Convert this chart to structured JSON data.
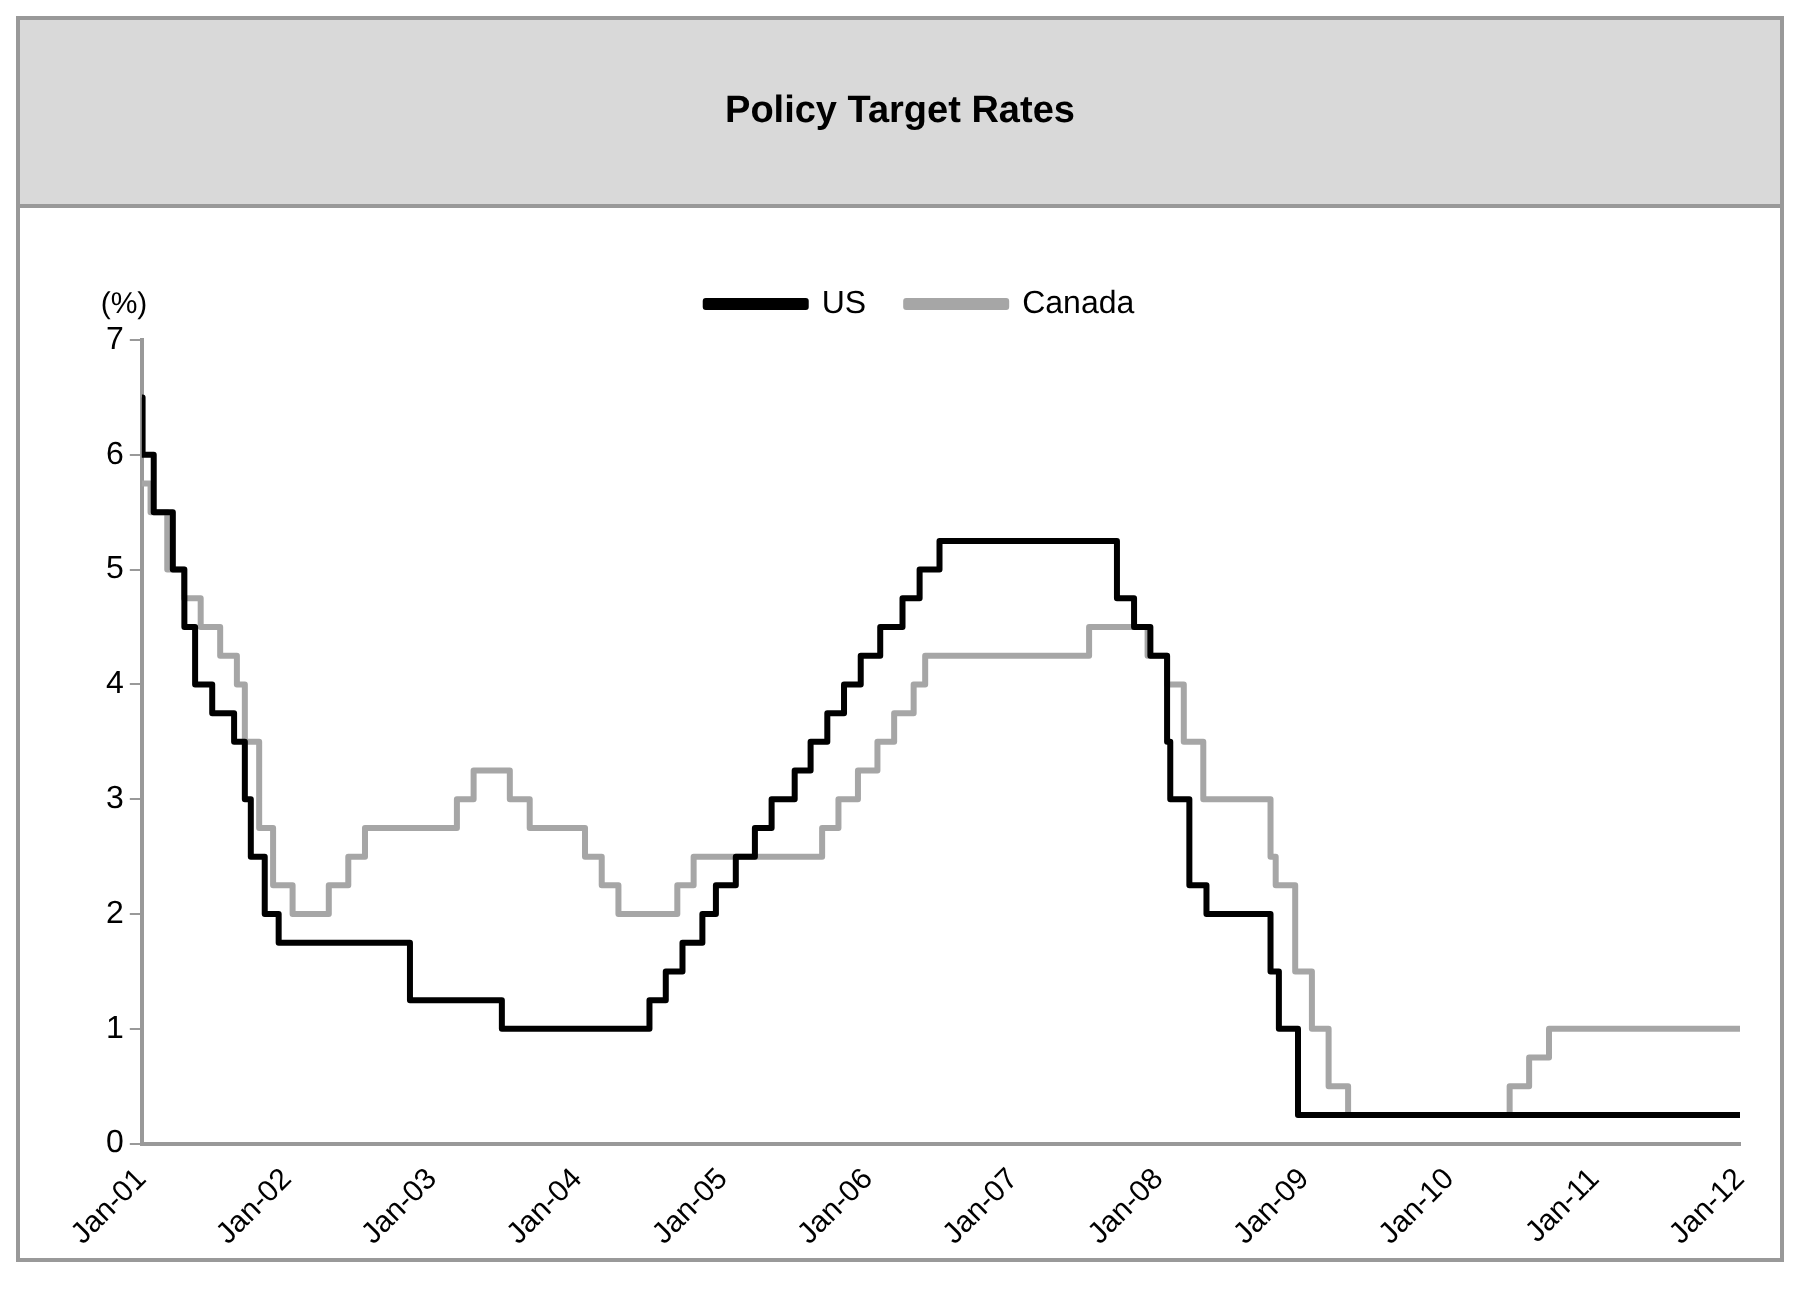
{
  "chart_data": {
    "type": "step",
    "title": "Policy Target Rates",
    "ylabel": "(%)",
    "legend": "top",
    "grid": false,
    "marker": "none",
    "line_style": "solid",
    "xlim": [
      "2001-01",
      "2012-01"
    ],
    "ylim": [
      0,
      7
    ],
    "yticks": [
      0,
      1,
      2,
      3,
      4,
      5,
      6,
      7
    ],
    "xticks": [
      {
        "value": "2001-01",
        "label": "Jan-01"
      },
      {
        "value": "2002-01",
        "label": "Jan-02"
      },
      {
        "value": "2003-01",
        "label": "Jan-03"
      },
      {
        "value": "2004-01",
        "label": "Jan-04"
      },
      {
        "value": "2005-01",
        "label": "Jan-05"
      },
      {
        "value": "2006-01",
        "label": "Jan-06"
      },
      {
        "value": "2007-01",
        "label": "Jan-07"
      },
      {
        "value": "2008-01",
        "label": "Jan-08"
      },
      {
        "value": "2009-01",
        "label": "Jan-09"
      },
      {
        "value": "2010-01",
        "label": "Jan-10"
      },
      {
        "value": "2011-01",
        "label": "Jan-11"
      },
      {
        "value": "2012-01",
        "label": "Jan-12"
      }
    ],
    "series": [
      {
        "name": "US",
        "color": "#000000",
        "x": [
          "2001-01-01",
          "2001-01-03",
          "2001-01-31",
          "2001-03-20",
          "2001-04-18",
          "2001-05-15",
          "2001-06-27",
          "2001-08-21",
          "2001-09-17",
          "2001-10-02",
          "2001-11-06",
          "2001-12-11",
          "2002-11-06",
          "2003-06-25",
          "2004-06-30",
          "2004-08-10",
          "2004-09-21",
          "2004-11-10",
          "2004-12-14",
          "2005-02-02",
          "2005-03-22",
          "2005-05-03",
          "2005-06-30",
          "2005-08-09",
          "2005-09-20",
          "2005-11-01",
          "2005-12-13",
          "2006-01-31",
          "2006-03-28",
          "2006-05-10",
          "2006-06-29",
          "2007-09-18",
          "2007-10-31",
          "2007-12-11",
          "2008-01-22",
          "2008-01-30",
          "2008-03-18",
          "2008-04-30",
          "2008-10-08",
          "2008-10-29",
          "2008-12-16",
          "2012-01-01"
        ],
        "values": [
          6.5,
          6,
          5.5,
          5,
          4.5,
          4,
          3.75,
          3.5,
          3,
          2.5,
          2,
          1.75,
          1.25,
          1,
          1.25,
          1.5,
          1.75,
          2,
          2.25,
          2.5,
          2.75,
          3,
          3.25,
          3.5,
          3.75,
          4,
          4.25,
          4.5,
          4.75,
          5,
          5.25,
          4.75,
          4.5,
          4.25,
          3.5,
          3,
          2.25,
          2,
          1.5,
          1,
          0.25,
          0.25
        ]
      },
      {
        "name": "Canada",
        "color": "#a6a6a6",
        "x": [
          "2001-01-01",
          "2001-01-23",
          "2001-03-06",
          "2001-04-17",
          "2001-05-29",
          "2001-07-17",
          "2001-08-28",
          "2001-09-17",
          "2001-10-23",
          "2001-11-27",
          "2002-01-15",
          "2002-04-16",
          "2002-06-04",
          "2002-07-16",
          "2003-03-04",
          "2003-04-15",
          "2003-07-15",
          "2003-09-03",
          "2004-01-20",
          "2004-03-02",
          "2004-04-13",
          "2004-09-08",
          "2004-10-19",
          "2005-09-07",
          "2005-10-18",
          "2005-12-06",
          "2006-01-24",
          "2006-03-07",
          "2006-04-25",
          "2006-05-24",
          "2007-07-10",
          "2007-12-04",
          "2008-01-22",
          "2008-03-04",
          "2008-04-22",
          "2008-10-08",
          "2008-10-21",
          "2008-12-09",
          "2009-01-20",
          "2009-03-03",
          "2009-04-21",
          "2010-06-01",
          "2010-07-20",
          "2010-09-08",
          "2012-01-01"
        ],
        "values": [
          5.75,
          5.5,
          5,
          4.75,
          4.5,
          4.25,
          4,
          3.5,
          2.75,
          2.25,
          2,
          2.25,
          2.5,
          2.75,
          3,
          3.25,
          3,
          2.75,
          2.5,
          2.25,
          2,
          2.25,
          2.5,
          2.75,
          3,
          3.25,
          3.5,
          3.75,
          4,
          4.25,
          4.5,
          4.25,
          4,
          3.5,
          3,
          2.5,
          2.25,
          1.5,
          1,
          0.5,
          0.25,
          0.5,
          0.75,
          1,
          1
        ]
      }
    ]
  }
}
